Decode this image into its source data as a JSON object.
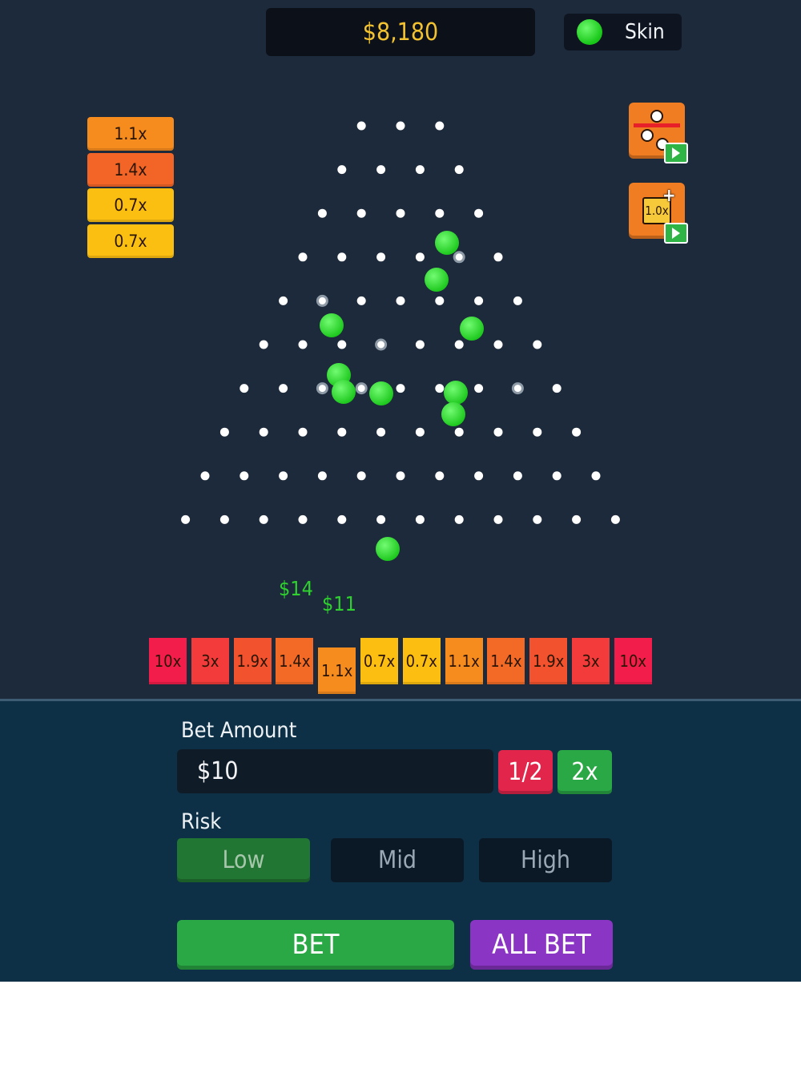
{
  "header": {
    "balance": "$8,180",
    "skin_label": "Skin"
  },
  "history": [
    {
      "label": "1.1x",
      "color": "#f68b1e"
    },
    {
      "label": "1.4x",
      "color": "#f26526"
    },
    {
      "label": "0.7x",
      "color": "#fbbf12"
    },
    {
      "label": "0.7x",
      "color": "#fbbf12"
    }
  ],
  "powerups": [
    {
      "name": "extra-balls",
      "icon": "balls-icon"
    },
    {
      "name": "multiplier-boost",
      "label": "1.0x",
      "icon": "multiplier-icon"
    }
  ],
  "board": {
    "rows": 10,
    "ball_color": "#33dd33",
    "peg_color": "#ffffff"
  },
  "win_popups": [
    "$14",
    "$11"
  ],
  "buckets": [
    {
      "label": "10x",
      "color": "#f21d4b"
    },
    {
      "label": "3x",
      "color": "#f23b3a"
    },
    {
      "label": "1.9x",
      "color": "#f2522e"
    },
    {
      "label": "1.4x",
      "color": "#f26a26"
    },
    {
      "label": "1.1x",
      "color": "#f78c1e"
    },
    {
      "label": "0.7x",
      "color": "#fcbf11"
    },
    {
      "label": "0.7x",
      "color": "#fcbf11"
    },
    {
      "label": "1.1x",
      "color": "#f78c1e"
    },
    {
      "label": "1.4x",
      "color": "#f26a26"
    },
    {
      "label": "1.9x",
      "color": "#f2522e"
    },
    {
      "label": "3x",
      "color": "#f23b3a"
    },
    {
      "label": "10x",
      "color": "#f21d4b"
    }
  ],
  "controls": {
    "bet_amount_label": "Bet Amount",
    "bet_value": "$10",
    "half_label": "1/2",
    "double_label": "2x",
    "risk_label": "Risk",
    "risk_options": [
      "Low",
      "Mid",
      "High"
    ],
    "risk_selected": "Low",
    "bet_button": "BET",
    "all_bet_button": "ALL BET"
  },
  "colors": {
    "background": "#1d2a3b",
    "panel": "#0d3046",
    "green_button": "#2aa845",
    "red_button": "#e2264b",
    "purple_button": "#8a35c3",
    "balance_text": "#f2c230"
  }
}
